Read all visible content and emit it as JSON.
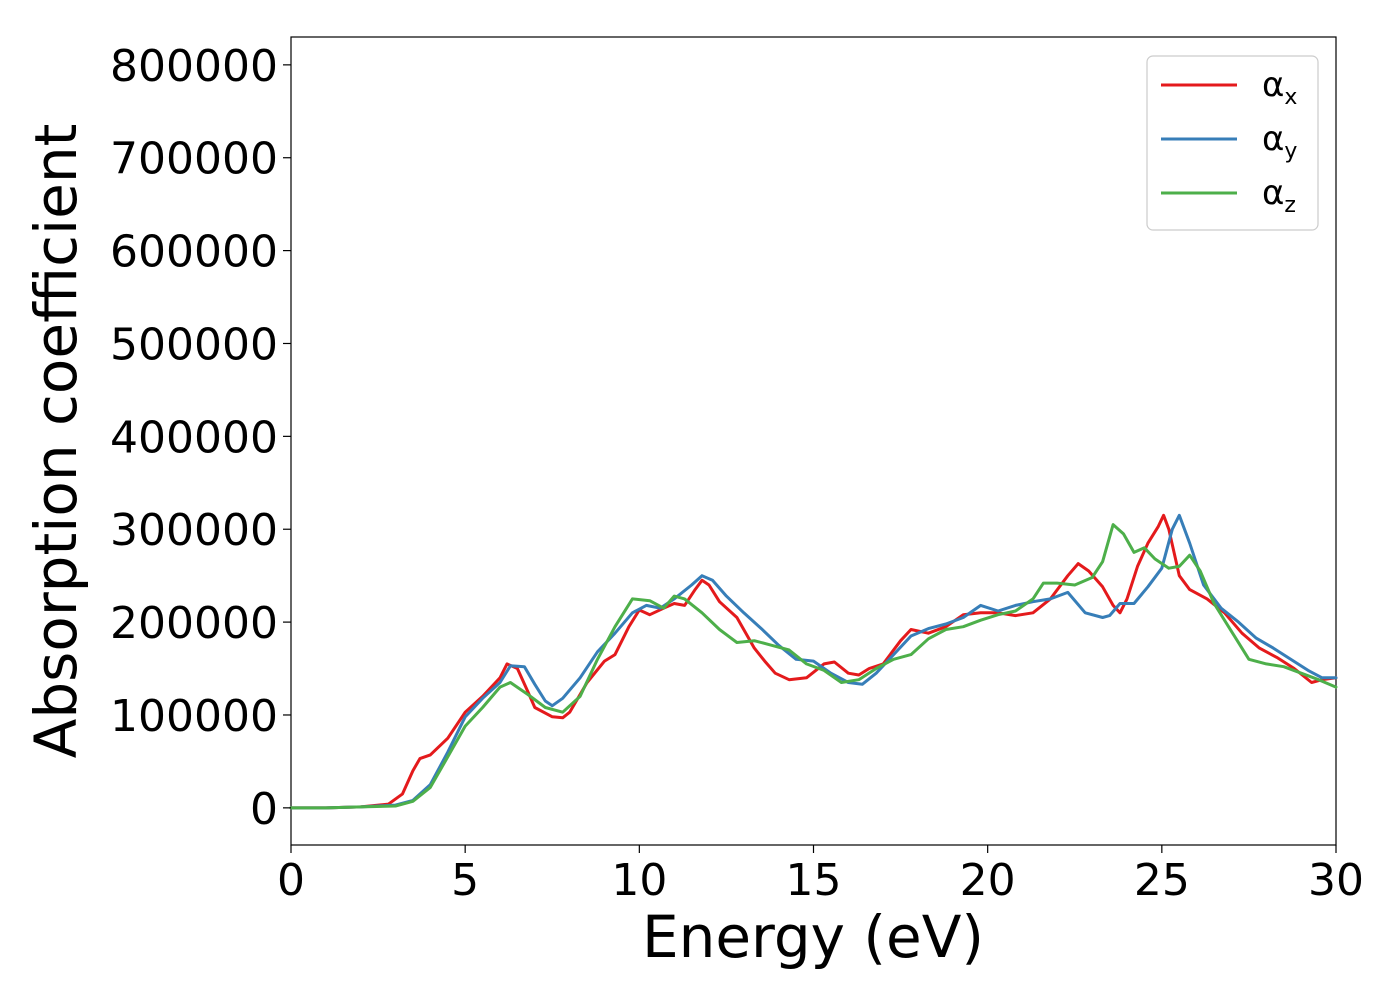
{
  "chart_data": {
    "type": "line",
    "title": "",
    "xlabel": "Energy (eV)",
    "ylabel": "Absorption coefficient",
    "xlim": [
      0,
      30
    ],
    "ylim": [
      -40000,
      830000
    ],
    "xticks": [
      0,
      5,
      10,
      15,
      20,
      25,
      30
    ],
    "yticks": [
      0,
      100000,
      200000,
      300000,
      400000,
      500000,
      600000,
      700000,
      800000
    ],
    "grid": false,
    "legend": "top-right",
    "series": [
      {
        "name": "α",
        "name_sub": "x",
        "color": "#e41a1c",
        "points": [
          [
            0,
            0
          ],
          [
            1,
            0
          ],
          [
            2,
            1000
          ],
          [
            2.8,
            4000
          ],
          [
            3.2,
            15000
          ],
          [
            3.5,
            40000
          ],
          [
            3.7,
            53000
          ],
          [
            4,
            57000
          ],
          [
            4.5,
            75000
          ],
          [
            5,
            103000
          ],
          [
            5.5,
            120000
          ],
          [
            6,
            140000
          ],
          [
            6.2,
            155000
          ],
          [
            6.5,
            150000
          ],
          [
            6.8,
            125000
          ],
          [
            7,
            108000
          ],
          [
            7.5,
            98000
          ],
          [
            7.8,
            97000
          ],
          [
            8,
            103000
          ],
          [
            8.5,
            135000
          ],
          [
            9,
            158000
          ],
          [
            9.3,
            165000
          ],
          [
            9.7,
            195000
          ],
          [
            10,
            213000
          ],
          [
            10.3,
            208000
          ],
          [
            10.7,
            215000
          ],
          [
            11,
            220000
          ],
          [
            11.3,
            218000
          ],
          [
            11.6,
            235000
          ],
          [
            11.8,
            245000
          ],
          [
            12,
            240000
          ],
          [
            12.3,
            222000
          ],
          [
            12.8,
            205000
          ],
          [
            13.3,
            172000
          ],
          [
            13.6,
            158000
          ],
          [
            13.9,
            145000
          ],
          [
            14.3,
            138000
          ],
          [
            14.8,
            140000
          ],
          [
            15.3,
            155000
          ],
          [
            15.6,
            157000
          ],
          [
            16,
            145000
          ],
          [
            16.3,
            143000
          ],
          [
            16.6,
            150000
          ],
          [
            17,
            155000
          ],
          [
            17.5,
            180000
          ],
          [
            17.8,
            192000
          ],
          [
            18.3,
            188000
          ],
          [
            18.8,
            195000
          ],
          [
            19.3,
            208000
          ],
          [
            19.8,
            210000
          ],
          [
            20.3,
            210000
          ],
          [
            20.8,
            207000
          ],
          [
            21.3,
            210000
          ],
          [
            21.8,
            225000
          ],
          [
            22.3,
            250000
          ],
          [
            22.6,
            263000
          ],
          [
            22.9,
            255000
          ],
          [
            23.3,
            238000
          ],
          [
            23.6,
            218000
          ],
          [
            23.8,
            210000
          ],
          [
            24,
            225000
          ],
          [
            24.3,
            260000
          ],
          [
            24.6,
            285000
          ],
          [
            24.9,
            303000
          ],
          [
            25.05,
            315000
          ],
          [
            25.2,
            300000
          ],
          [
            25.5,
            250000
          ],
          [
            25.8,
            235000
          ],
          [
            26.3,
            225000
          ],
          [
            26.8,
            210000
          ],
          [
            27.3,
            188000
          ],
          [
            27.8,
            172000
          ],
          [
            28.3,
            162000
          ],
          [
            28.8,
            150000
          ],
          [
            29.3,
            135000
          ],
          [
            29.6,
            138000
          ],
          [
            30,
            140000
          ]
        ]
      },
      {
        "name": "α",
        "name_sub": "y",
        "color": "#377eb8",
        "points": [
          [
            0,
            0
          ],
          [
            1,
            0
          ],
          [
            2,
            1000
          ],
          [
            3,
            3000
          ],
          [
            3.5,
            8000
          ],
          [
            4,
            25000
          ],
          [
            4.5,
            60000
          ],
          [
            5,
            98000
          ],
          [
            5.5,
            118000
          ],
          [
            6,
            135000
          ],
          [
            6.3,
            153000
          ],
          [
            6.7,
            152000
          ],
          [
            7,
            133000
          ],
          [
            7.3,
            115000
          ],
          [
            7.5,
            110000
          ],
          [
            7.8,
            118000
          ],
          [
            8.3,
            140000
          ],
          [
            8.8,
            168000
          ],
          [
            9.3,
            188000
          ],
          [
            9.8,
            210000
          ],
          [
            10.2,
            218000
          ],
          [
            10.6,
            215000
          ],
          [
            11,
            225000
          ],
          [
            11.5,
            240000
          ],
          [
            11.8,
            250000
          ],
          [
            12.1,
            245000
          ],
          [
            12.5,
            228000
          ],
          [
            13,
            210000
          ],
          [
            13.5,
            193000
          ],
          [
            14,
            175000
          ],
          [
            14.5,
            160000
          ],
          [
            15,
            158000
          ],
          [
            15.5,
            145000
          ],
          [
            16,
            135000
          ],
          [
            16.4,
            133000
          ],
          [
            16.8,
            145000
          ],
          [
            17.3,
            165000
          ],
          [
            17.8,
            185000
          ],
          [
            18.3,
            193000
          ],
          [
            18.8,
            198000
          ],
          [
            19.3,
            205000
          ],
          [
            19.8,
            218000
          ],
          [
            20.3,
            212000
          ],
          [
            20.8,
            218000
          ],
          [
            21.3,
            222000
          ],
          [
            21.8,
            225000
          ],
          [
            22.3,
            232000
          ],
          [
            22.8,
            210000
          ],
          [
            23.3,
            205000
          ],
          [
            23.5,
            207000
          ],
          [
            23.8,
            220000
          ],
          [
            24.2,
            220000
          ],
          [
            24.6,
            238000
          ],
          [
            25,
            258000
          ],
          [
            25.3,
            300000
          ],
          [
            25.5,
            315000
          ],
          [
            25.8,
            285000
          ],
          [
            26.2,
            240000
          ],
          [
            26.7,
            215000
          ],
          [
            27.2,
            200000
          ],
          [
            27.7,
            183000
          ],
          [
            28.2,
            172000
          ],
          [
            28.7,
            160000
          ],
          [
            29.2,
            148000
          ],
          [
            29.6,
            140000
          ],
          [
            30,
            140000
          ]
        ]
      },
      {
        "name": "α",
        "name_sub": "z",
        "color": "#4daf4a",
        "points": [
          [
            0,
            0
          ],
          [
            1,
            0
          ],
          [
            2,
            1000
          ],
          [
            3,
            2000
          ],
          [
            3.5,
            7000
          ],
          [
            4,
            22000
          ],
          [
            4.5,
            55000
          ],
          [
            5,
            88000
          ],
          [
            5.5,
            108000
          ],
          [
            6,
            130000
          ],
          [
            6.3,
            135000
          ],
          [
            6.8,
            122000
          ],
          [
            7.3,
            108000
          ],
          [
            7.8,
            103000
          ],
          [
            8.3,
            120000
          ],
          [
            8.8,
            160000
          ],
          [
            9.3,
            195000
          ],
          [
            9.8,
            225000
          ],
          [
            10.3,
            223000
          ],
          [
            10.7,
            215000
          ],
          [
            11,
            228000
          ],
          [
            11.3,
            225000
          ],
          [
            11.8,
            210000
          ],
          [
            12.3,
            192000
          ],
          [
            12.8,
            178000
          ],
          [
            13.3,
            180000
          ],
          [
            13.8,
            175000
          ],
          [
            14.3,
            170000
          ],
          [
            14.8,
            155000
          ],
          [
            15.3,
            148000
          ],
          [
            15.8,
            135000
          ],
          [
            16.3,
            138000
          ],
          [
            16.8,
            150000
          ],
          [
            17.3,
            160000
          ],
          [
            17.8,
            165000
          ],
          [
            18.3,
            182000
          ],
          [
            18.8,
            192000
          ],
          [
            19.3,
            195000
          ],
          [
            19.8,
            202000
          ],
          [
            20.3,
            208000
          ],
          [
            20.8,
            212000
          ],
          [
            21.3,
            225000
          ],
          [
            21.6,
            242000
          ],
          [
            22,
            242000
          ],
          [
            22.5,
            240000
          ],
          [
            23,
            248000
          ],
          [
            23.3,
            265000
          ],
          [
            23.6,
            305000
          ],
          [
            23.9,
            295000
          ],
          [
            24.2,
            275000
          ],
          [
            24.5,
            280000
          ],
          [
            24.8,
            268000
          ],
          [
            25.2,
            258000
          ],
          [
            25.5,
            260000
          ],
          [
            25.8,
            272000
          ],
          [
            26.1,
            255000
          ],
          [
            26.5,
            220000
          ],
          [
            27,
            190000
          ],
          [
            27.5,
            160000
          ],
          [
            28,
            155000
          ],
          [
            28.5,
            152000
          ],
          [
            29,
            145000
          ],
          [
            29.5,
            138000
          ],
          [
            30,
            130000
          ]
        ]
      }
    ]
  }
}
